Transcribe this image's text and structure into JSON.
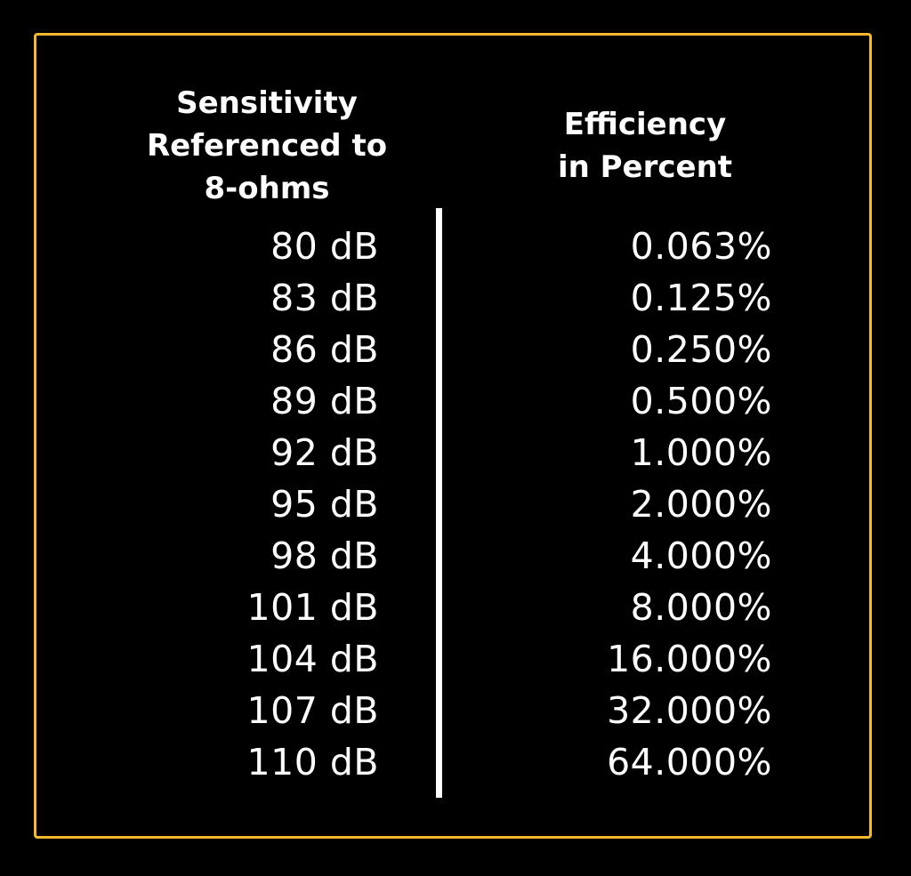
{
  "chart_data": {
    "type": "table",
    "title": "",
    "columns": [
      "Sensitivity Referenced to 8-ohms",
      "Efficiency in Percent"
    ],
    "rows": [
      [
        "80 dB",
        "0.063%"
      ],
      [
        "83 dB",
        "0.125%"
      ],
      [
        "86 dB",
        "0.250%"
      ],
      [
        "89 dB",
        "0.500%"
      ],
      [
        "92 dB",
        "1.000%"
      ],
      [
        "95 dB",
        "2.000%"
      ],
      [
        "98 dB",
        "4.000%"
      ],
      [
        "101 dB",
        "8.000%"
      ],
      [
        "104 dB",
        "16.000%"
      ],
      [
        "107 dB",
        "32.000%"
      ],
      [
        "110 dB",
        "64.000%"
      ]
    ],
    "sensitivity_db": [
      80,
      83,
      86,
      89,
      92,
      95,
      98,
      101,
      104,
      107,
      110
    ],
    "efficiency_percent": [
      0.063,
      0.125,
      0.25,
      0.5,
      1.0,
      2.0,
      4.0,
      8.0,
      16.0,
      32.0,
      64.0
    ]
  },
  "header": {
    "left_line1": "Sensitivity",
    "left_line2": "Referenced to",
    "left_line3": "8-ohms",
    "right_line1": "Efficiency",
    "right_line2": "in Percent"
  },
  "left": [
    "80 dB",
    "83 dB",
    "86 dB",
    "89 dB",
    "92 dB",
    "95 dB",
    "98 dB",
    "101 dB",
    "104 dB",
    "107 dB",
    "110 dB"
  ],
  "right": [
    "0.063%",
    "0.125%",
    "0.250%",
    "0.500%",
    "1.000%",
    "2.000%",
    "4.000%",
    "8.000%",
    "16.000%",
    "32.000%",
    "64.000%"
  ],
  "colors": {
    "border": "#f5b82e",
    "background": "#000000",
    "text": "#ffffff"
  }
}
